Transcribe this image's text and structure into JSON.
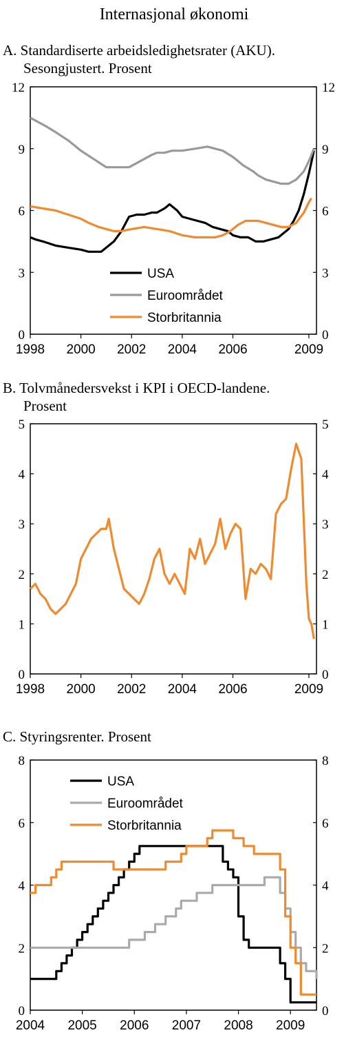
{
  "page_title": "Internasjonal økonomi",
  "colors": {
    "USA": "#000000",
    "Euroområdet": "#999999",
    "Euroområdet_C": "#aaaaaa",
    "Storbritannia": "#f08a2e",
    "KPI": "#f08a2e"
  },
  "chart_data": [
    {
      "id": "A",
      "type": "line",
      "title_line1": "A. Standardiserte arbeidsledighetsrater (AKU).",
      "title_line2": "Sesongjustert. Prosent",
      "x_ticks": [
        "1998",
        "2000",
        "2002",
        "2004",
        "2006",
        "2009"
      ],
      "x_tick_values": [
        1998,
        2000,
        2002,
        2004,
        2006,
        2009
      ],
      "xlim": [
        1998,
        2009.3
      ],
      "y_ticks": [
        "0",
        "3",
        "6",
        "9",
        "12"
      ],
      "ylim": [
        0,
        12
      ],
      "legend": [
        "USA",
        "Euroområdet",
        "Storbritannia"
      ],
      "series": [
        {
          "name": "USA",
          "x": [
            1998.0,
            1998.2,
            1998.5,
            1999.0,
            1999.5,
            2000.0,
            2000.3,
            2000.5,
            2000.8,
            2001.0,
            2001.3,
            2001.6,
            2001.9,
            2002.2,
            2002.5,
            2002.8,
            2003.0,
            2003.3,
            2003.5,
            2003.8,
            2004.0,
            2004.3,
            2004.6,
            2004.9,
            2005.2,
            2005.5,
            2005.8,
            2006.0,
            2006.3,
            2006.6,
            2006.9,
            2007.2,
            2007.5,
            2007.8,
            2008.0,
            2008.2,
            2008.4,
            2008.6,
            2008.8,
            2009.0,
            2009.2
          ],
          "values": [
            4.7,
            4.6,
            4.5,
            4.3,
            4.2,
            4.1,
            4.0,
            4.0,
            4.0,
            4.2,
            4.5,
            5.0,
            5.7,
            5.8,
            5.8,
            5.9,
            5.9,
            6.1,
            6.3,
            6.0,
            5.7,
            5.6,
            5.5,
            5.4,
            5.2,
            5.1,
            5.0,
            4.8,
            4.7,
            4.7,
            4.5,
            4.5,
            4.6,
            4.7,
            4.9,
            5.1,
            5.5,
            6.0,
            6.8,
            7.8,
            8.9
          ]
        },
        {
          "name": "Euroområdet",
          "x": [
            1998.0,
            1998.3,
            1998.6,
            1999.0,
            1999.5,
            2000.0,
            2000.5,
            2001.0,
            2001.5,
            2001.9,
            2002.2,
            2002.5,
            2002.8,
            2003.0,
            2003.3,
            2003.6,
            2004.0,
            2004.5,
            2005.0,
            2005.3,
            2005.6,
            2006.0,
            2006.4,
            2006.8,
            2007.0,
            2007.3,
            2007.6,
            2007.9,
            2008.2,
            2008.5,
            2008.8,
            2009.0,
            2009.2
          ],
          "values": [
            10.5,
            10.3,
            10.1,
            9.8,
            9.4,
            8.9,
            8.5,
            8.1,
            8.1,
            8.1,
            8.3,
            8.5,
            8.7,
            8.8,
            8.8,
            8.9,
            8.9,
            9.0,
            9.1,
            9.0,
            8.9,
            8.6,
            8.2,
            7.9,
            7.7,
            7.5,
            7.4,
            7.3,
            7.3,
            7.5,
            7.9,
            8.4,
            9.0
          ]
        },
        {
          "name": "Storbritannia",
          "x": [
            1998.0,
            1998.5,
            1999.0,
            1999.5,
            2000.0,
            2000.3,
            2000.7,
            2001.0,
            2001.3,
            2001.6,
            2002.0,
            2002.5,
            2003.0,
            2003.5,
            2004.0,
            2004.5,
            2005.0,
            2005.3,
            2005.6,
            2005.9,
            2006.2,
            2006.5,
            2006.8,
            2007.0,
            2007.3,
            2007.6,
            2007.9,
            2008.2,
            2008.5,
            2008.8,
            2009.0,
            2009.1
          ],
          "values": [
            6.2,
            6.1,
            6.0,
            5.8,
            5.6,
            5.4,
            5.2,
            5.1,
            5.0,
            5.0,
            5.1,
            5.2,
            5.1,
            5.0,
            4.8,
            4.7,
            4.7,
            4.7,
            4.8,
            5.0,
            5.3,
            5.5,
            5.5,
            5.5,
            5.4,
            5.3,
            5.2,
            5.2,
            5.4,
            5.9,
            6.4,
            6.6
          ]
        }
      ]
    },
    {
      "id": "B",
      "type": "line",
      "title_line1": "B. Tolvmånedersvekst i KPI i OECD-landene.",
      "title_line2": "Prosent",
      "x_ticks": [
        "1998",
        "2000",
        "2002",
        "2004",
        "2006",
        "2009"
      ],
      "x_tick_values": [
        1998,
        2000,
        2002,
        2004,
        2006,
        2009
      ],
      "xlim": [
        1998,
        2009.3
      ],
      "y_ticks": [
        "0",
        "1",
        "2",
        "3",
        "4",
        "5"
      ],
      "ylim": [
        0,
        5
      ],
      "series": [
        {
          "name": "",
          "x": [
            1998.0,
            1998.2,
            1998.4,
            1998.6,
            1998.8,
            1999.0,
            1999.2,
            1999.4,
            1999.6,
            1999.8,
            2000.0,
            2000.2,
            2000.4,
            2000.6,
            2000.8,
            2001.0,
            2001.1,
            2001.3,
            2001.5,
            2001.7,
            2001.9,
            2002.1,
            2002.3,
            2002.5,
            2002.7,
            2002.9,
            2003.1,
            2003.3,
            2003.5,
            2003.7,
            2003.9,
            2004.1,
            2004.3,
            2004.5,
            2004.7,
            2004.9,
            2005.1,
            2005.3,
            2005.5,
            2005.7,
            2005.9,
            2006.1,
            2006.3,
            2006.5,
            2006.7,
            2006.9,
            2007.1,
            2007.3,
            2007.5,
            2007.7,
            2007.9,
            2008.1,
            2008.3,
            2008.5,
            2008.7,
            2008.9,
            2009.0,
            2009.1,
            2009.2
          ],
          "values": [
            1.7,
            1.8,
            1.6,
            1.5,
            1.3,
            1.2,
            1.3,
            1.4,
            1.6,
            1.8,
            2.3,
            2.5,
            2.7,
            2.8,
            2.9,
            2.9,
            3.1,
            2.5,
            2.1,
            1.7,
            1.6,
            1.5,
            1.4,
            1.6,
            1.9,
            2.3,
            2.5,
            2.0,
            1.8,
            2.0,
            1.8,
            1.6,
            2.5,
            2.3,
            2.7,
            2.2,
            2.4,
            2.6,
            3.1,
            2.5,
            2.8,
            3.0,
            2.9,
            1.5,
            2.1,
            2.0,
            2.2,
            2.1,
            1.9,
            3.2,
            3.4,
            3.5,
            4.1,
            4.6,
            4.3,
            1.8,
            1.1,
            1.0,
            0.7
          ]
        }
      ]
    },
    {
      "id": "C",
      "type": "line",
      "title_line1": "C.  Styringsrenter. Prosent",
      "x_ticks": [
        "2004",
        "2005",
        "2006",
        "2007",
        "2008",
        "2009"
      ],
      "x_tick_values": [
        2004,
        2005,
        2006,
        2007,
        2008,
        2009
      ],
      "xlim": [
        2004,
        2009.5
      ],
      "y_ticks": [
        "0",
        "2",
        "4",
        "6",
        "8"
      ],
      "ylim": [
        0,
        8
      ],
      "legend": [
        "USA",
        "Euroområdet",
        "Storbritannia"
      ],
      "series": [
        {
          "name": "USA",
          "step": true,
          "x": [
            2004.0,
            2004.5,
            2004.6,
            2004.7,
            2004.8,
            2004.9,
            2005.0,
            2005.1,
            2005.2,
            2005.3,
            2005.4,
            2005.5,
            2005.6,
            2005.7,
            2005.8,
            2005.9,
            2006.0,
            2006.1,
            2006.2,
            2006.3,
            2006.4,
            2006.5,
            2007.7,
            2007.8,
            2007.9,
            2008.0,
            2008.1,
            2008.2,
            2008.3,
            2008.8,
            2008.9,
            2009.0,
            2009.5
          ],
          "values": [
            1.0,
            1.25,
            1.5,
            1.75,
            2.0,
            2.25,
            2.5,
            2.75,
            3.0,
            3.25,
            3.5,
            3.75,
            4.0,
            4.25,
            4.5,
            4.75,
            5.0,
            5.25,
            5.25,
            5.25,
            5.25,
            5.25,
            4.75,
            4.5,
            4.25,
            3.0,
            2.25,
            2.0,
            2.0,
            1.5,
            1.0,
            0.25,
            0.25
          ]
        },
        {
          "name": "Euroområdet",
          "step": true,
          "x": [
            2004.0,
            2005.9,
            2006.2,
            2006.4,
            2006.6,
            2006.8,
            2006.9,
            2007.2,
            2007.5,
            2008.5,
            2008.8,
            2008.9,
            2009.0,
            2009.1,
            2009.2,
            2009.3,
            2009.5
          ],
          "values": [
            2.0,
            2.25,
            2.5,
            2.75,
            3.0,
            3.25,
            3.5,
            3.75,
            4.0,
            4.25,
            3.75,
            3.25,
            2.5,
            2.0,
            1.5,
            1.25,
            1.0
          ]
        },
        {
          "name": "Storbritannia",
          "step": true,
          "x": [
            2004.0,
            2004.1,
            2004.4,
            2004.5,
            2004.6,
            2005.6,
            2006.6,
            2006.9,
            2007.0,
            2007.4,
            2007.5,
            2007.9,
            2008.1,
            2008.3,
            2008.8,
            2008.9,
            2009.0,
            2009.1,
            2009.2,
            2009.5
          ],
          "values": [
            3.75,
            4.0,
            4.25,
            4.5,
            4.75,
            4.5,
            4.75,
            5.0,
            5.25,
            5.5,
            5.75,
            5.5,
            5.25,
            5.0,
            4.5,
            3.0,
            2.0,
            1.5,
            0.5,
            0.5
          ]
        }
      ]
    }
  ]
}
